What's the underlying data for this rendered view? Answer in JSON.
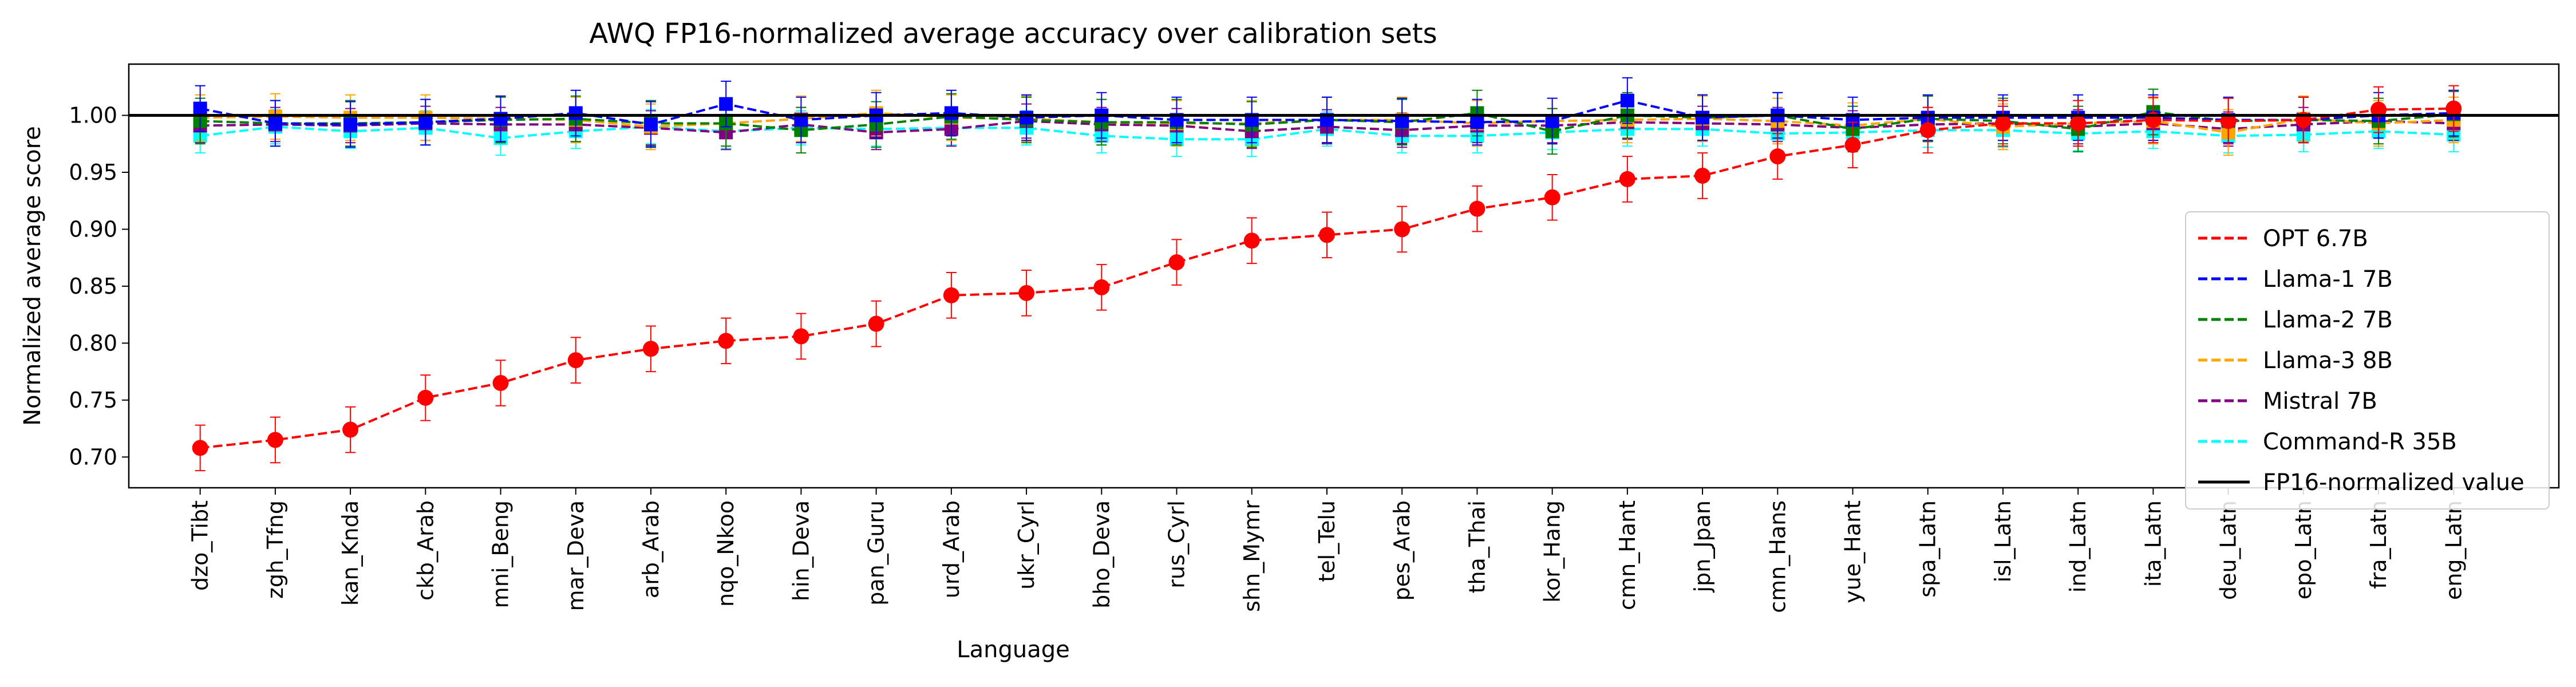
{
  "chart_data": {
    "type": "line",
    "title": "AWQ FP16-normalized average accuracy over calibration sets",
    "xlabel": "Language",
    "ylabel": "Normalized average score",
    "ylim": [
      0.673,
      1.045
    ],
    "yticks": [
      0.7,
      0.75,
      0.8,
      0.85,
      0.9,
      0.95,
      1.0
    ],
    "ytick_labels": [
      "0.70",
      "0.75",
      "0.80",
      "0.85",
      "0.90",
      "0.95",
      "1.00"
    ],
    "categories": [
      "dzo_Tibt",
      "zgh_Tfng",
      "kan_Knda",
      "ckb_Arab",
      "mni_Beng",
      "mar_Deva",
      "arb_Arab",
      "nqo_Nkoo",
      "hin_Deva",
      "pan_Guru",
      "urd_Arab",
      "ukr_Cyrl",
      "bho_Deva",
      "rus_Cyrl",
      "shn_Mymr",
      "tel_Telu",
      "pes_Arab",
      "tha_Thai",
      "kor_Hang",
      "cmn_Hant",
      "jpn_Jpan",
      "cmn_Hans",
      "yue_Hant",
      "spa_Latn",
      "isl_Latn",
      "ind_Latn",
      "ita_Latn",
      "deu_Latn",
      "epo_Latn",
      "fra_Latn",
      "eng_Latn"
    ],
    "reference_line": {
      "value": 1.0,
      "label": "FP16-normalized value",
      "color": "#000000"
    },
    "legend_position": "center-right",
    "grid": false,
    "series": [
      {
        "name": "OPT 6.7B",
        "color": "#ff0000",
        "marker": "circle",
        "error": 0.02,
        "values": [
          0.708,
          0.715,
          0.724,
          0.752,
          0.765,
          0.785,
          0.795,
          0.802,
          0.806,
          0.817,
          0.842,
          0.844,
          0.849,
          0.871,
          0.89,
          0.895,
          0.9,
          0.918,
          0.928,
          0.944,
          0.947,
          0.964,
          0.974,
          0.987,
          0.993,
          0.993,
          0.996,
          0.995,
          0.996,
          1.005,
          1.006
        ]
      },
      {
        "name": "Llama-1 7B",
        "color": "#0000ff",
        "marker": "square",
        "error": 0.02,
        "values": [
          1.006,
          0.993,
          0.992,
          0.994,
          0.997,
          1.002,
          0.992,
          1.01,
          0.996,
          1.0,
          1.002,
          0.998,
          1.0,
          0.996,
          0.996,
          0.996,
          0.995,
          0.994,
          0.995,
          1.013,
          0.998,
          1.0,
          0.996,
          0.998,
          0.998,
          0.998,
          0.998,
          0.996,
          0.996,
          1.0,
          1.002
        ]
      },
      {
        "name": "Llama-2 7B",
        "color": "#008000",
        "marker": "square",
        "error": 0.02,
        "values": [
          0.995,
          0.993,
          0.993,
          0.994,
          0.996,
          0.997,
          0.993,
          0.993,
          0.987,
          0.992,
          0.999,
          0.996,
          0.994,
          0.994,
          0.992,
          0.996,
          0.994,
          1.002,
          0.986,
          1.0,
          0.998,
          1.0,
          0.988,
          0.997,
          0.995,
          0.988,
          1.003,
          0.995,
          0.996,
          0.995,
          1.001
        ]
      },
      {
        "name": "Llama-3 8B",
        "color": "#ffa500",
        "marker": "square",
        "error": 0.02,
        "values": [
          0.998,
          0.999,
          0.998,
          0.998,
          0.997,
          0.996,
          0.99,
          0.993,
          0.997,
          1.002,
          0.998,
          0.997,
          0.994,
          0.993,
          0.993,
          0.996,
          0.996,
          0.993,
          0.995,
          0.996,
          0.997,
          0.995,
          0.991,
          0.997,
          0.99,
          0.993,
          0.995,
          0.985,
          0.997,
          0.993,
          0.996
        ]
      },
      {
        "name": "Mistral 7B",
        "color": "#800080",
        "marker": "square",
        "error": 0.015,
        "values": [
          0.991,
          0.992,
          0.991,
          0.993,
          0.992,
          0.992,
          0.989,
          0.985,
          0.992,
          0.985,
          0.988,
          0.995,
          0.992,
          0.991,
          0.986,
          0.99,
          0.987,
          0.991,
          0.991,
          0.994,
          0.993,
          0.992,
          0.989,
          0.992,
          0.993,
          0.99,
          0.993,
          0.988,
          0.992,
          0.995,
          0.993
        ]
      },
      {
        "name": "Command-R 35B",
        "color": "#00ffff",
        "marker": "square",
        "error": 0.015,
        "values": [
          0.982,
          0.99,
          0.986,
          0.989,
          0.98,
          0.986,
          0.99,
          0.986,
          0.989,
          0.988,
          0.989,
          0.989,
          0.982,
          0.979,
          0.979,
          0.988,
          0.982,
          0.982,
          0.985,
          0.988,
          0.988,
          0.984,
          0.985,
          0.987,
          0.987,
          0.984,
          0.986,
          0.982,
          0.983,
          0.986,
          0.983
        ]
      }
    ]
  }
}
